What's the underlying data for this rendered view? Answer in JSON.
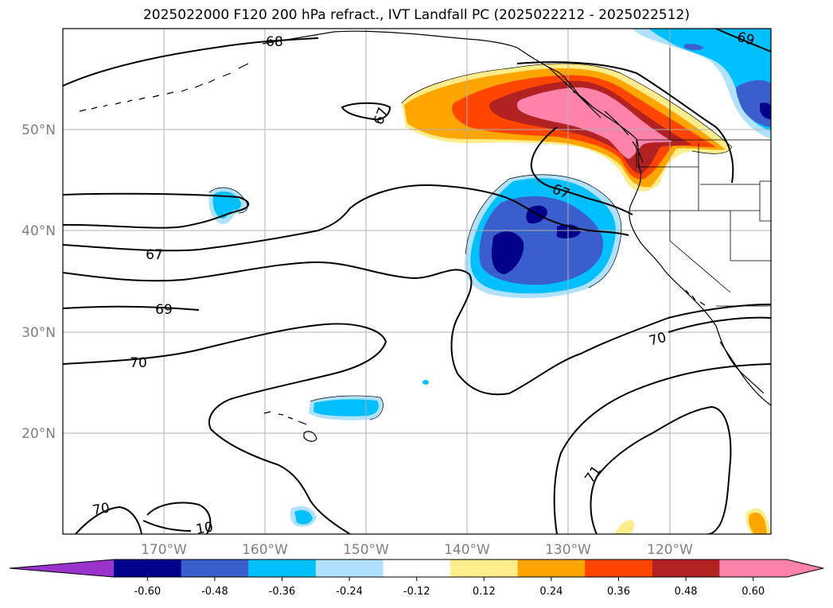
{
  "title": "2025022000 F120 200 hPa refract., IVT Landfall PC (2025022212 - 2025022512)",
  "lat_labels": [
    "50°N",
    "40°N",
    "30°N",
    "20°N"
  ],
  "lon_labels": [
    "170°W",
    "160°W",
    "150°W",
    "140°W",
    "130°W",
    "120°W"
  ],
  "contour_labels": [
    "68",
    "67",
    "67",
    "67",
    "69",
    "70",
    "70",
    "71",
    "70",
    "10",
    "69"
  ],
  "colorbar": {
    "ticks": [
      "-0.60",
      "-0.48",
      "-0.36",
      "-0.24",
      "-0.12",
      "0.12",
      "0.24",
      "0.36",
      "0.48",
      "0.60"
    ],
    "colors": [
      "#9933cc",
      "#00008b",
      "#3a5fcd",
      "#00bfff",
      "#b0e2ff",
      "#ffffff",
      "#ffec8b",
      "#ffa500",
      "#ff4500",
      "#b22222",
      "#ff82ab",
      "#ff82ab"
    ]
  },
  "shading": {
    "positive_colors": [
      "#ffec8b",
      "#ffa500",
      "#ff4500",
      "#b22222",
      "#ff82ab"
    ],
    "negative_colors": [
      "#b0e2ff",
      "#00bfff",
      "#3a5fcd",
      "#00008b"
    ]
  }
}
